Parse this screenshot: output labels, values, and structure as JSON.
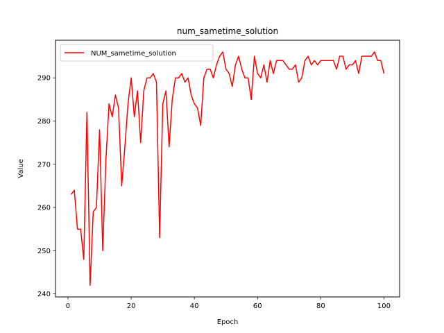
{
  "chart_data": {
    "type": "line",
    "title": "num_sametime_solution",
    "xlabel": "Epoch",
    "ylabel": "Value",
    "xlim": [
      -3.95,
      104.95
    ],
    "ylim": [
      239.3,
      298.7
    ],
    "xticks": [
      0,
      20,
      40,
      60,
      80,
      100
    ],
    "yticks": [
      240,
      250,
      260,
      270,
      280,
      290
    ],
    "xtick_labels": [
      "0",
      "20",
      "40",
      "60",
      "80",
      "100"
    ],
    "ytick_labels": [
      "240",
      "250",
      "260",
      "270",
      "280",
      "290"
    ],
    "grid": false,
    "legend_position": "upper left",
    "series": [
      {
        "name": "NUM_sametime_solution",
        "color": "#ff0000",
        "x": [
          1,
          2,
          3,
          4,
          5,
          6,
          7,
          8,
          9,
          10,
          11,
          12,
          13,
          14,
          15,
          16,
          17,
          18,
          19,
          20,
          21,
          22,
          23,
          24,
          25,
          26,
          27,
          28,
          29,
          30,
          31,
          32,
          33,
          34,
          35,
          36,
          37,
          38,
          39,
          40,
          41,
          42,
          43,
          44,
          45,
          46,
          47,
          48,
          49,
          50,
          51,
          52,
          53,
          54,
          55,
          56,
          57,
          58,
          59,
          60,
          61,
          62,
          63,
          64,
          65,
          66,
          67,
          68,
          69,
          70,
          71,
          72,
          73,
          74,
          75,
          76,
          77,
          78,
          79,
          80,
          81,
          82,
          83,
          84,
          85,
          86,
          87,
          88,
          89,
          90,
          91,
          92,
          93,
          94,
          95,
          96,
          97,
          98,
          99,
          100
        ],
        "values": [
          263,
          264,
          255,
          255,
          248,
          282,
          242,
          259,
          260,
          278,
          250,
          271,
          284,
          281,
          286,
          283,
          265,
          274,
          284,
          290,
          281,
          287,
          275,
          287,
          290,
          290,
          291,
          289,
          253,
          284,
          287,
          274,
          285,
          290,
          290,
          291,
          289,
          290,
          286,
          284,
          283,
          279,
          290,
          292,
          292,
          290,
          293,
          295,
          296,
          292,
          291,
          288,
          293,
          295,
          292,
          290,
          290,
          285,
          295,
          291,
          290,
          293,
          289,
          294,
          291,
          294,
          294,
          294,
          293,
          292,
          292,
          293,
          289,
          290,
          294,
          295,
          293,
          294,
          293,
          294,
          294,
          294,
          294,
          294,
          292,
          295,
          295,
          292,
          293,
          293,
          294,
          291,
          295,
          295,
          295,
          295,
          296,
          294,
          294,
          291
        ]
      }
    ]
  }
}
